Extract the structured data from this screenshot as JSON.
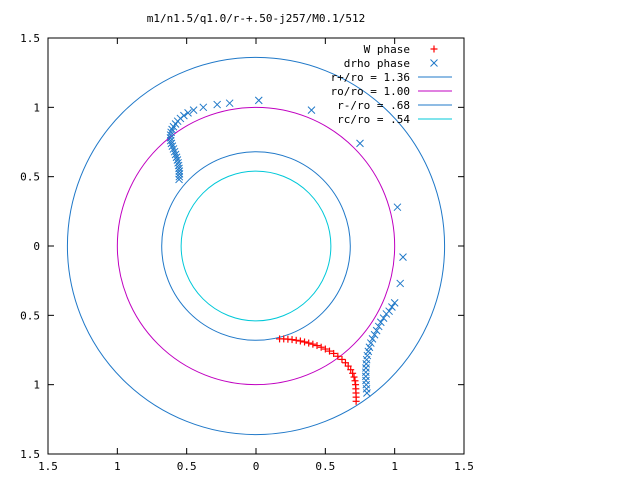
{
  "chart_data": {
    "type": "scatter",
    "title": "m1/n1.5/q1.0/r-+.50-j257/M0.1/512",
    "xlabel": "",
    "ylabel": "",
    "xlim": [
      -1.5,
      1.5
    ],
    "ylim": [
      -1.5,
      1.5
    ],
    "grid": false,
    "legend_position": "top-right",
    "x_ticks": [
      {
        "value": -1.5,
        "label": "1.5"
      },
      {
        "value": -1,
        "label": "1"
      },
      {
        "value": -0.5,
        "label": "0.5"
      },
      {
        "value": 0,
        "label": "0"
      },
      {
        "value": 0.5,
        "label": "0.5"
      },
      {
        "value": 1,
        "label": "1"
      },
      {
        "value": 1.5,
        "label": "1.5"
      }
    ],
    "y_ticks": [
      {
        "value": 1.5,
        "label": "1.5"
      },
      {
        "value": 1,
        "label": "1"
      },
      {
        "value": 0.5,
        "label": "0.5"
      },
      {
        "value": 0,
        "label": "0"
      },
      {
        "value": -0.5,
        "label": "0.5"
      },
      {
        "value": -1,
        "label": "1"
      },
      {
        "value": -1.5,
        "label": "1.5"
      }
    ],
    "circles": [
      {
        "name": "r+/ro = 1.36",
        "radius": 1.36,
        "color": "#1f78c8"
      },
      {
        "name": "ro/ro = 1.00",
        "radius": 1.0,
        "color": "#c000c0"
      },
      {
        "name": "r-/ro = .68",
        "radius": 0.68,
        "color": "#1f78c8"
      },
      {
        "name": "rc/ro = .54",
        "radius": 0.54,
        "color": "#00c8d8"
      }
    ],
    "series": [
      {
        "name": "W phase",
        "marker": "plus",
        "color": "#ff0000",
        "points": [
          [
            0.17,
            -0.67
          ],
          [
            0.2,
            -0.67
          ],
          [
            0.23,
            -0.672
          ],
          [
            0.26,
            -0.675
          ],
          [
            0.29,
            -0.68
          ],
          [
            0.32,
            -0.685
          ],
          [
            0.35,
            -0.692
          ],
          [
            0.38,
            -0.7
          ],
          [
            0.41,
            -0.708
          ],
          [
            0.44,
            -0.718
          ],
          [
            0.47,
            -0.73
          ],
          [
            0.5,
            -0.743
          ],
          [
            0.53,
            -0.758
          ],
          [
            0.56,
            -0.775
          ],
          [
            0.59,
            -0.795
          ],
          [
            0.62,
            -0.818
          ],
          [
            0.645,
            -0.842
          ],
          [
            0.665,
            -0.866
          ],
          [
            0.683,
            -0.892
          ],
          [
            0.697,
            -0.918
          ],
          [
            0.707,
            -0.945
          ],
          [
            0.714,
            -0.972
          ],
          [
            0.718,
            -1.0
          ],
          [
            0.72,
            -1.03
          ],
          [
            0.721,
            -1.06
          ],
          [
            0.722,
            -1.09
          ],
          [
            0.722,
            -1.12
          ]
        ]
      },
      {
        "name": "drho phase",
        "marker": "cross",
        "color": "#1f78c8",
        "points": [
          [
            0.02,
            1.05
          ],
          [
            -0.19,
            1.03
          ],
          [
            -0.28,
            1.02
          ],
          [
            -0.38,
            1.0
          ],
          [
            -0.45,
            0.98
          ],
          [
            -0.49,
            0.96
          ],
          [
            -0.52,
            0.94
          ],
          [
            -0.545,
            0.92
          ],
          [
            -0.565,
            0.9
          ],
          [
            -0.58,
            0.88
          ],
          [
            -0.595,
            0.86
          ],
          [
            -0.605,
            0.84
          ],
          [
            -0.612,
            0.82
          ],
          [
            -0.616,
            0.8
          ],
          [
            -0.617,
            0.78
          ],
          [
            -0.615,
            0.76
          ],
          [
            -0.61,
            0.74
          ],
          [
            -0.603,
            0.72
          ],
          [
            -0.595,
            0.7
          ],
          [
            -0.587,
            0.68
          ],
          [
            -0.58,
            0.66
          ],
          [
            -0.573,
            0.64
          ],
          [
            -0.567,
            0.62
          ],
          [
            -0.562,
            0.6
          ],
          [
            -0.558,
            0.58
          ],
          [
            -0.555,
            0.56
          ],
          [
            -0.553,
            0.54
          ],
          [
            -0.552,
            0.52
          ],
          [
            -0.553,
            0.5
          ],
          [
            -0.555,
            0.48
          ],
          [
            0.4,
            0.98
          ],
          [
            0.75,
            0.74
          ],
          [
            1.02,
            0.28
          ],
          [
            1.06,
            -0.08
          ],
          [
            1.04,
            -0.27
          ],
          [
            1.0,
            -0.41
          ],
          [
            0.98,
            -0.44
          ],
          [
            0.96,
            -0.47
          ],
          [
            0.94,
            -0.49
          ],
          [
            0.92,
            -0.52
          ],
          [
            0.9,
            -0.55
          ],
          [
            0.885,
            -0.58
          ],
          [
            0.87,
            -0.61
          ],
          [
            0.855,
            -0.64
          ],
          [
            0.84,
            -0.67
          ],
          [
            0.828,
            -0.7
          ],
          [
            0.818,
            -0.73
          ],
          [
            0.81,
            -0.76
          ],
          [
            0.803,
            -0.79
          ],
          [
            0.798,
            -0.82
          ],
          [
            0.795,
            -0.85
          ],
          [
            0.793,
            -0.88
          ],
          [
            0.792,
            -0.91
          ],
          [
            0.792,
            -0.94
          ],
          [
            0.793,
            -0.97
          ],
          [
            0.795,
            -1.0
          ],
          [
            0.797,
            -1.03
          ],
          [
            0.8,
            -1.06
          ]
        ]
      }
    ]
  }
}
